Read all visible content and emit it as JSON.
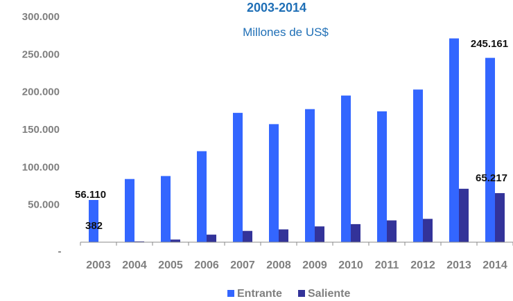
{
  "chart_data": {
    "type": "bar",
    "title": "2003-2014",
    "subtitle": "Millones de US$",
    "categories": [
      "2003",
      "2004",
      "2005",
      "2006",
      "2007",
      "2008",
      "2009",
      "2010",
      "2011",
      "2012",
      "2013",
      "2014"
    ],
    "series": [
      {
        "name": "Entrante",
        "color": "#3366ff",
        "values": [
          56110,
          84000,
          88000,
          121000,
          172000,
          157000,
          177000,
          195000,
          174000,
          203000,
          271000,
          245161
        ]
      },
      {
        "name": "Saliente",
        "color": "#333399",
        "values": [
          382,
          1000,
          3500,
          10000,
          15000,
          17000,
          21000,
          24000,
          29000,
          31000,
          71000,
          65217
        ]
      }
    ],
    "ylim": [
      0,
      300000
    ],
    "y_ticks": [
      0,
      50000,
      100000,
      150000,
      200000,
      250000,
      300000
    ],
    "y_tick_labels": [
      "-",
      "50.000",
      "100.000",
      "150.000",
      "200.000",
      "250.000",
      "300.000"
    ],
    "data_labels": [
      {
        "series": 0,
        "index": 0,
        "text": "56.110"
      },
      {
        "series": 1,
        "index": 0,
        "text": "382"
      },
      {
        "series": 0,
        "index": 11,
        "text": "245.161"
      },
      {
        "series": 1,
        "index": 11,
        "text": "65.217"
      }
    ],
    "legend_position": "bottom",
    "grid": false
  }
}
